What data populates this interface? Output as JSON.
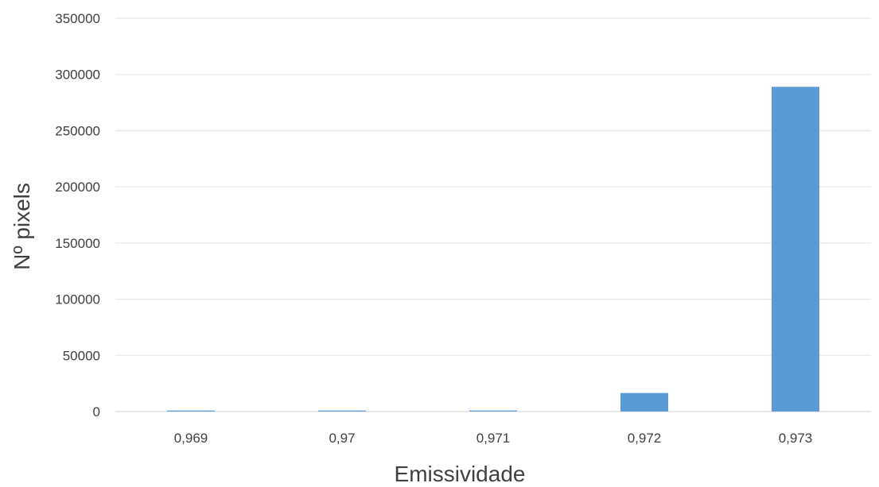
{
  "chart_data": {
    "type": "bar",
    "title": "",
    "xlabel": "Emissividade",
    "ylabel": "Nº pixels",
    "categories": [
      "0,969",
      "0,97",
      "0,971",
      "0,972",
      "0,973"
    ],
    "series": [
      {
        "values": [
          900,
          900,
          900,
          16500,
          289000
        ]
      }
    ],
    "ylim": [
      0,
      350000
    ],
    "yticks": [
      0,
      50000,
      100000,
      150000,
      200000,
      250000,
      300000,
      350000
    ],
    "ytick_labels": [
      "0",
      "50000",
      "100000",
      "150000",
      "200000",
      "250000",
      "300000",
      "350000"
    ],
    "grid": true,
    "legend": "none",
    "bar_color": "#5b9bd5"
  }
}
